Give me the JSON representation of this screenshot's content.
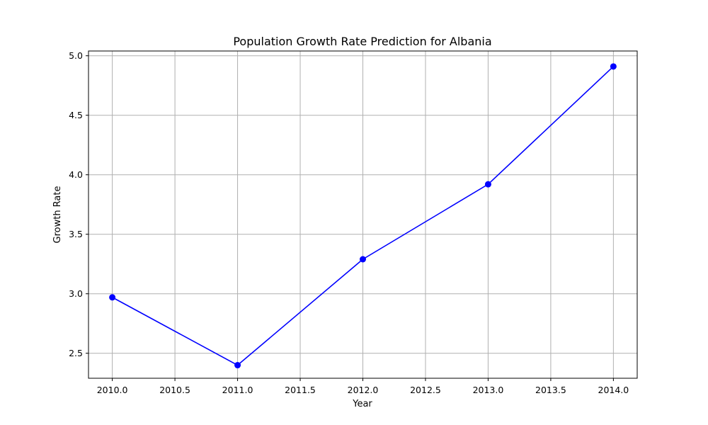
{
  "chart_data": {
    "type": "line",
    "title": "Population Growth Rate Prediction for Albania",
    "xlabel": "Year",
    "ylabel": "Growth Rate",
    "x": [
      2010,
      2011,
      2012,
      2013,
      2014
    ],
    "series": [
      {
        "values": [
          2.97,
          2.4,
          3.29,
          3.92,
          4.91
        ]
      }
    ],
    "xlim": [
      2009.81,
      2014.19
    ],
    "ylim": [
      2.29,
      5.04
    ],
    "xticks": [
      2010.0,
      2010.5,
      2011.0,
      2011.5,
      2012.0,
      2012.5,
      2013.0,
      2013.5,
      2014.0
    ],
    "xtick_labels": [
      "2010.0",
      "2010.5",
      "2011.0",
      "2011.5",
      "2012.0",
      "2012.5",
      "2013.0",
      "2013.5",
      "2014.0"
    ],
    "yticks": [
      2.5,
      3.0,
      3.5,
      4.0,
      4.5,
      5.0
    ],
    "ytick_labels": [
      "2.5",
      "3.0",
      "3.5",
      "4.0",
      "4.5",
      "5.0"
    ],
    "grid": true,
    "line_color": "#0000ff",
    "marker": "circle",
    "grid_color": "#b0b0b0"
  }
}
